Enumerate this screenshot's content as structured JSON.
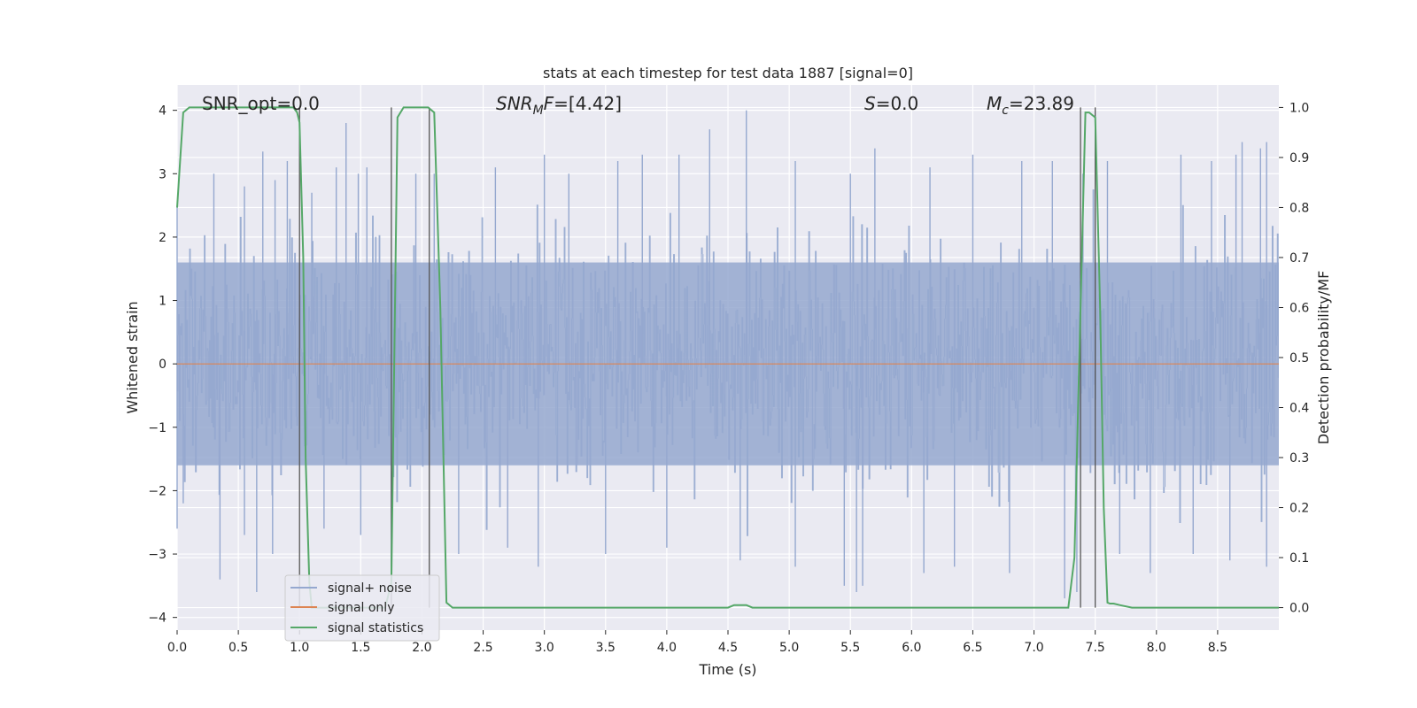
{
  "chart_data": {
    "type": "line",
    "title": "stats at each timestep for test data 1887 [signal=0]",
    "xlabel": "Time (s)",
    "ylabel": "Whitened strain",
    "ylabel_right": "Detection probability/MF",
    "xlim": [
      0.0,
      9.0
    ],
    "ylim": [
      -4.2,
      4.4
    ],
    "ylim_right": [
      -0.045,
      1.045
    ],
    "x_ticks": [
      "0.0",
      "0.5",
      "1.0",
      "1.5",
      "2.0",
      "2.5",
      "3.0",
      "3.5",
      "4.0",
      "4.5",
      "5.0",
      "5.5",
      "6.0",
      "6.5",
      "7.0",
      "7.5",
      "8.0",
      "8.5"
    ],
    "y_ticks": [
      "4",
      "3",
      "2",
      "1",
      "0",
      "−1",
      "−2",
      "−3",
      "−4"
    ],
    "y_ticks_right": [
      "1.0",
      "0.9",
      "0.8",
      "0.7",
      "0.6",
      "0.5",
      "0.4",
      "0.3",
      "0.2",
      "0.1",
      "0.0"
    ],
    "grid": true,
    "legend_position": "lower-left",
    "series": [
      {
        "name": "signal+ noise",
        "color": "#95a8cf",
        "description_values": "dense noise between about -3.5 and 4.0",
        "spikes_high": [
          [
            0.0,
            2.5
          ],
          [
            0.3,
            3.0
          ],
          [
            0.55,
            2.8
          ],
          [
            0.7,
            3.35
          ],
          [
            0.8,
            2.9
          ],
          [
            0.9,
            3.2
          ],
          [
            1.1,
            2.7
          ],
          [
            1.3,
            3.1
          ],
          [
            1.38,
            3.8
          ],
          [
            1.48,
            3.0
          ],
          [
            1.55,
            3.1
          ],
          [
            1.95,
            3.0
          ],
          [
            2.1,
            3.0
          ],
          [
            2.6,
            3.1
          ],
          [
            3.0,
            3.3
          ],
          [
            3.2,
            3.0
          ],
          [
            3.6,
            3.2
          ],
          [
            3.8,
            3.3
          ],
          [
            4.1,
            3.3
          ],
          [
            4.35,
            3.7
          ],
          [
            4.65,
            4.0
          ],
          [
            5.05,
            3.2
          ],
          [
            5.5,
            3.0
          ],
          [
            5.7,
            3.4
          ],
          [
            6.15,
            3.1
          ],
          [
            6.5,
            3.3
          ],
          [
            6.9,
            3.2
          ],
          [
            7.15,
            3.2
          ],
          [
            7.4,
            3.0
          ],
          [
            7.6,
            3.2
          ],
          [
            8.2,
            3.3
          ],
          [
            8.45,
            3.2
          ],
          [
            8.65,
            3.3
          ],
          [
            8.7,
            3.5
          ],
          [
            8.85,
            3.4
          ],
          [
            8.9,
            3.5
          ]
        ],
        "spikes_low": [
          [
            0.0,
            -2.6
          ],
          [
            0.05,
            -2.2
          ],
          [
            0.35,
            -3.4
          ],
          [
            0.55,
            -2.7
          ],
          [
            0.65,
            -3.6
          ],
          [
            0.78,
            -3.0
          ],
          [
            1.2,
            -2.6
          ],
          [
            1.5,
            -2.7
          ],
          [
            1.75,
            -3.2
          ],
          [
            2.3,
            -3.0
          ],
          [
            2.7,
            -2.9
          ],
          [
            2.95,
            -3.2
          ],
          [
            3.5,
            -3.0
          ],
          [
            4.0,
            -2.9
          ],
          [
            4.6,
            -3.1
          ],
          [
            5.05,
            -3.2
          ],
          [
            5.45,
            -3.5
          ],
          [
            5.55,
            -3.6
          ],
          [
            5.6,
            -3.5
          ],
          [
            6.1,
            -3.3
          ],
          [
            6.35,
            -3.2
          ],
          [
            6.8,
            -3.3
          ],
          [
            7.25,
            -3.7
          ],
          [
            7.35,
            -3.6
          ],
          [
            7.7,
            -3.0
          ],
          [
            7.95,
            -3.3
          ],
          [
            8.3,
            -3.0
          ],
          [
            8.6,
            -3.1
          ],
          [
            8.9,
            -3.2
          ]
        ]
      },
      {
        "name": "signal only",
        "color": "#dd8452",
        "x": [
          0.0,
          9.0
        ],
        "y": [
          0.0,
          0.0
        ]
      },
      {
        "name": "signal statistics",
        "color": "#55a868",
        "axis": "right",
        "x": [
          0.0,
          0.05,
          0.1,
          0.15,
          0.2,
          0.4,
          0.6,
          0.8,
          0.95,
          0.98,
          1.0,
          1.03,
          1.05,
          1.08,
          1.1,
          1.7,
          1.75,
          1.8,
          1.85,
          1.9,
          2.0,
          2.05,
          2.1,
          2.15,
          2.2,
          2.25,
          2.5,
          3.0,
          4.0,
          4.5,
          4.55,
          4.6,
          4.65,
          4.7,
          5.0,
          6.0,
          7.0,
          7.2,
          7.28,
          7.33,
          7.37,
          7.42,
          7.45,
          7.5,
          7.54,
          7.57,
          7.6,
          7.62,
          7.65,
          7.7,
          7.8,
          8.0,
          8.5,
          9.0
        ],
        "y": [
          0.8,
          0.99,
          1.0,
          1.0,
          1.0,
          1.0,
          1.0,
          1.0,
          1.0,
          0.99,
          0.97,
          0.7,
          0.3,
          0.05,
          0.0,
          0.0,
          0.05,
          0.98,
          1.0,
          1.0,
          1.0,
          1.0,
          0.99,
          0.6,
          0.01,
          0.0,
          0.0,
          0.0,
          0.0,
          0.0,
          0.005,
          0.005,
          0.005,
          0.0,
          0.0,
          0.0,
          0.0,
          0.0,
          0.0,
          0.1,
          0.5,
          0.99,
          0.99,
          0.98,
          0.6,
          0.2,
          0.01,
          0.008,
          0.008,
          0.005,
          0.0,
          0.0,
          0.0,
          0.0
        ]
      }
    ],
    "vlines": [
      1.0,
      1.75,
      2.06,
      7.38,
      7.5
    ],
    "annotations": [
      {
        "prefix": "SNR_opt=",
        "value": "0.0",
        "italic": false
      },
      {
        "italic_part": "SNR",
        "sub": "M",
        "italic_rest": "F",
        "suffix": "=[4.42]"
      },
      {
        "italic_part": "S",
        "suffix": "=0.0"
      },
      {
        "italic_part": "M",
        "sub": "c",
        "suffix": "=23.89"
      }
    ]
  },
  "legend": {
    "items": [
      {
        "label": "signal+ noise",
        "color": "#95a8cf"
      },
      {
        "label": "signal only",
        "color": "#dd8452"
      },
      {
        "label": "signal statistics",
        "color": "#55a868"
      }
    ]
  }
}
